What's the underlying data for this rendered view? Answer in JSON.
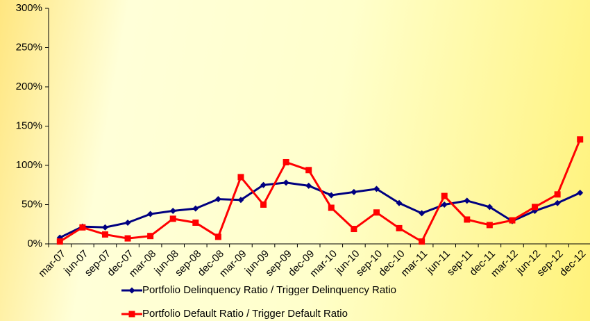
{
  "chart_data": {
    "type": "line",
    "categories": [
      "mar-07",
      "jun-07",
      "sep-07",
      "dec-07",
      "mar-08",
      "jun-08",
      "sep-08",
      "dec-08",
      "mar-09",
      "jun-09",
      "sep-09",
      "dec-09",
      "mar-10",
      "jun-10",
      "sep-10",
      "dec-10",
      "mar-11",
      "jun-11",
      "sep-11",
      "dec-11",
      "mar-12",
      "jun-12",
      "sep-12",
      "dec-12"
    ],
    "series": [
      {
        "name": "Portfolio Delinquency Ratio / Trigger Delinquency Ratio",
        "color": "#000080",
        "marker": "diamond",
        "values": [
          8,
          22,
          21,
          27,
          38,
          42,
          45,
          57,
          56,
          75,
          78,
          74,
          62,
          66,
          70,
          52,
          39,
          50,
          55,
          47,
          29,
          42,
          52,
          65
        ]
      },
      {
        "name": "Portfolio Default Ratio / Trigger Default Ratio",
        "color": "#ff0000",
        "marker": "square",
        "values": [
          3,
          21,
          12,
          7,
          10,
          32,
          27,
          9,
          85,
          50,
          104,
          94,
          46,
          19,
          40,
          20,
          3,
          61,
          31,
          24,
          30,
          47,
          63,
          133
        ]
      }
    ],
    "ylim": [
      0,
      300
    ],
    "yticks": [
      {
        "value": 0,
        "label": "0%"
      },
      {
        "value": 50,
        "label": "50%"
      },
      {
        "value": 100,
        "label": "100%"
      },
      {
        "value": 150,
        "label": "150%"
      },
      {
        "value": 200,
        "label": "200%"
      },
      {
        "value": 250,
        "label": "250%"
      },
      {
        "value": 300,
        "label": "300%"
      }
    ],
    "grid": false,
    "legend": "bottom"
  }
}
